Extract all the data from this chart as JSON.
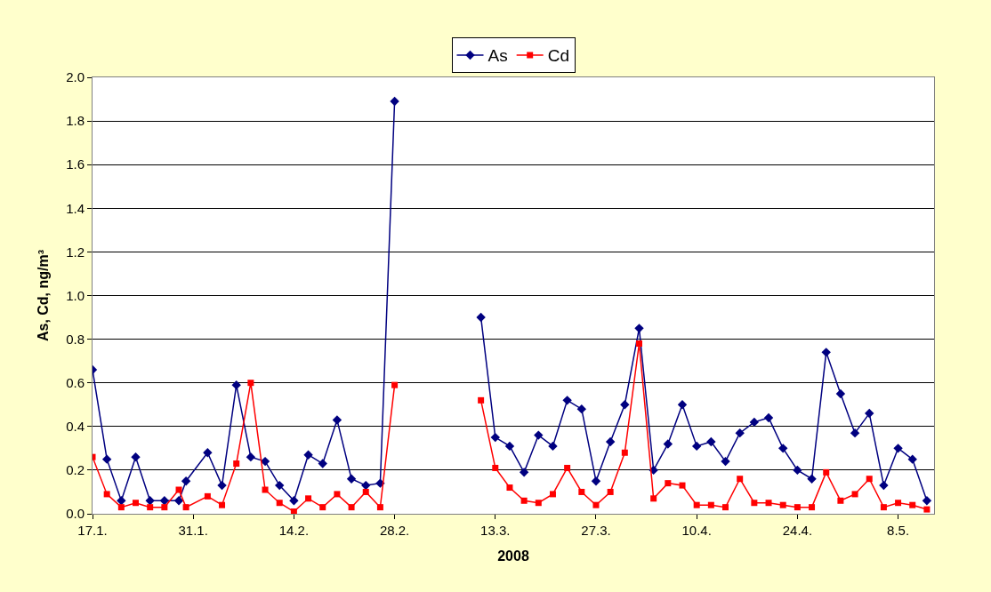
{
  "chart_data": {
    "type": "line",
    "xlabel": "2008",
    "ylabel": "As, Cd, ng/m³",
    "x": [
      "2008-01-17",
      "2008-01-19",
      "2008-01-21",
      "2008-01-23",
      "2008-01-25",
      "2008-01-27",
      "2008-01-29",
      "2008-01-30",
      "2008-02-02",
      "2008-02-04",
      "2008-02-06",
      "2008-02-08",
      "2008-02-10",
      "2008-02-12",
      "2008-02-14",
      "2008-02-16",
      "2008-02-18",
      "2008-02-20",
      "2008-02-22",
      "2008-02-24",
      "2008-02-26",
      "2008-02-28",
      "2008-03-01",
      "2008-03-11",
      "2008-03-13",
      "2008-03-15",
      "2008-03-17",
      "2008-03-19",
      "2008-03-21",
      "2008-03-23",
      "2008-03-25",
      "2008-03-27",
      "2008-03-29",
      "2008-03-31",
      "2008-04-02",
      "2008-04-04",
      "2008-04-06",
      "2008-04-08",
      "2008-04-10",
      "2008-04-12",
      "2008-04-14",
      "2008-04-16",
      "2008-04-18",
      "2008-04-20",
      "2008-04-22",
      "2008-04-24",
      "2008-04-26",
      "2008-04-28",
      "2008-04-30",
      "2008-05-02",
      "2008-05-04",
      "2008-05-06",
      "2008-05-08",
      "2008-05-10",
      "2008-05-12"
    ],
    "series": [
      {
        "name": "As",
        "color": "#000080",
        "marker": "diamond",
        "values": [
          0.66,
          0.25,
          0.06,
          0.26,
          0.06,
          0.06,
          0.06,
          0.15,
          0.28,
          0.13,
          0.59,
          0.26,
          0.24,
          0.13,
          0.06,
          0.27,
          0.23,
          0.43,
          0.16,
          0.13,
          0.14,
          1.89,
          null,
          0.9,
          0.35,
          0.31,
          0.19,
          0.36,
          0.31,
          0.52,
          0.48,
          0.15,
          0.33,
          0.5,
          0.85,
          0.2,
          0.32,
          0.5,
          0.31,
          0.33,
          0.24,
          0.37,
          0.42,
          0.44,
          0.3,
          0.2,
          0.16,
          0.74,
          0.55,
          0.37,
          0.46,
          0.13,
          0.3,
          0.25,
          0.06
        ]
      },
      {
        "name": "Cd",
        "color": "#ff0000",
        "marker": "square",
        "values": [
          0.26,
          0.09,
          0.03,
          0.05,
          0.03,
          0.03,
          0.11,
          0.03,
          0.08,
          0.04,
          0.23,
          0.6,
          0.11,
          0.05,
          0.01,
          0.07,
          0.03,
          0.09,
          0.03,
          0.1,
          0.03,
          0.59,
          null,
          0.52,
          0.21,
          0.12,
          0.06,
          0.05,
          0.09,
          0.21,
          0.1,
          0.04,
          0.1,
          0.28,
          0.78,
          0.07,
          0.14,
          0.13,
          0.04,
          0.04,
          0.03,
          0.16,
          0.05,
          0.05,
          0.04,
          0.03,
          0.03,
          0.19,
          0.06,
          0.09,
          0.16,
          0.03,
          0.05,
          0.04,
          0.02
        ]
      }
    ],
    "xlim": [
      "2008-01-17",
      "2008-05-13"
    ],
    "xticks": [
      {
        "value": "2008-01-17",
        "label": "17.1."
      },
      {
        "value": "2008-01-31",
        "label": "31.1."
      },
      {
        "value": "2008-02-14",
        "label": "14.2."
      },
      {
        "value": "2008-02-28",
        "label": "28.2."
      },
      {
        "value": "2008-03-13",
        "label": "13.3."
      },
      {
        "value": "2008-03-27",
        "label": "27.3."
      },
      {
        "value": "2008-04-10",
        "label": "10.4."
      },
      {
        "value": "2008-04-24",
        "label": "24.4."
      },
      {
        "value": "2008-05-08",
        "label": "8.5."
      }
    ],
    "ylim": [
      0,
      2.0
    ],
    "yticks": [
      {
        "value": 0,
        "label": "0.0"
      },
      {
        "value": 0.2,
        "label": "0.2"
      },
      {
        "value": 0.4,
        "label": "0.4"
      },
      {
        "value": 0.6,
        "label": "0.6"
      },
      {
        "value": 0.8,
        "label": "0.8"
      },
      {
        "value": 1.0,
        "label": "1.0"
      },
      {
        "value": 1.2,
        "label": "1.2"
      },
      {
        "value": 1.4,
        "label": "1.4"
      },
      {
        "value": 1.6,
        "label": "1.6"
      },
      {
        "value": 1.8,
        "label": "1.8"
      },
      {
        "value": 2.0,
        "label": "2.0"
      }
    ],
    "grid": "y",
    "legend": "top",
    "line_style": "solid"
  }
}
